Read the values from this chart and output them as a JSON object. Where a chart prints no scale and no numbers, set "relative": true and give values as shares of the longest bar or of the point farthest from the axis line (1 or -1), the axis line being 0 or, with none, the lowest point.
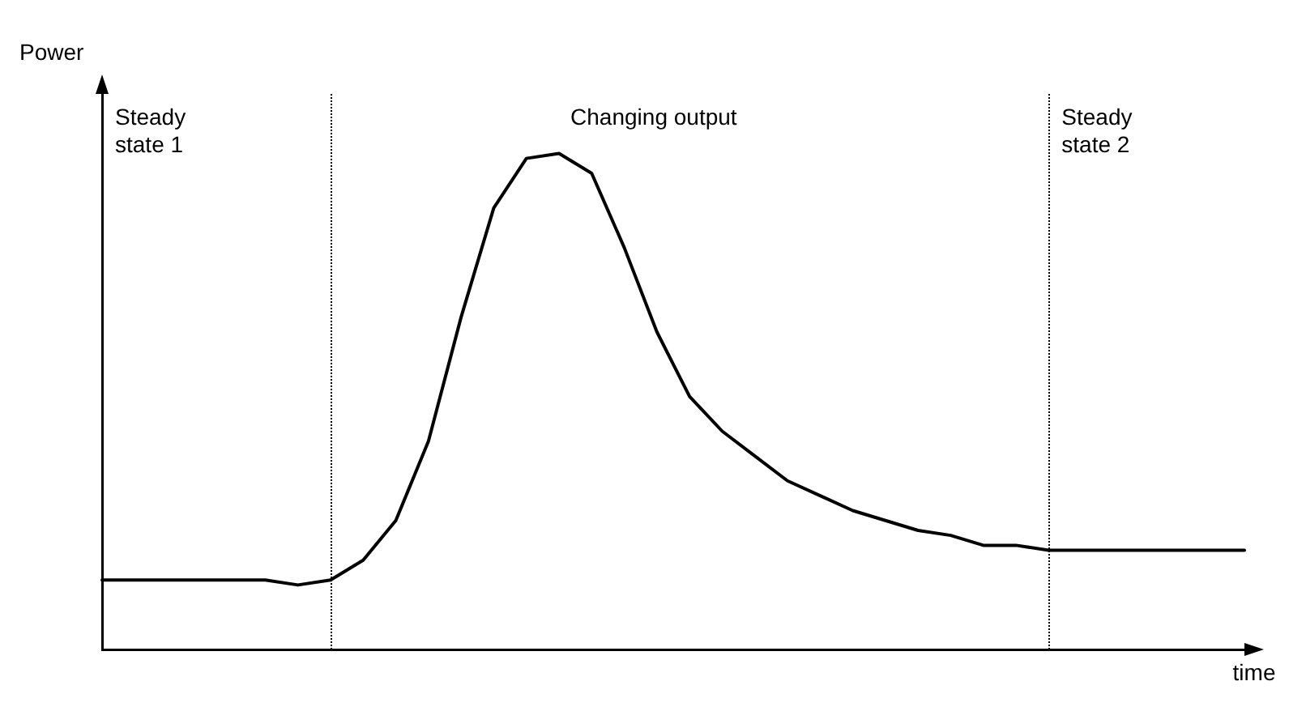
{
  "chart_data": {
    "type": "line",
    "relative": true,
    "ylabel": "Power",
    "xlabel": "time",
    "categories": [
      null,
      null,
      null,
      null,
      null,
      null,
      null,
      null,
      null,
      null,
      null,
      null,
      null,
      null,
      null,
      null,
      null,
      null,
      null,
      null,
      null,
      null,
      null,
      null,
      null,
      null,
      null,
      null,
      null,
      null,
      null,
      null,
      null,
      null,
      null,
      null
    ],
    "series": [
      {
        "color": "#000000",
        "values": [
          0.14,
          0.14,
          0.14,
          0.14,
          0.14,
          0.14,
          0.13,
          0.14,
          0.18,
          0.26,
          0.42,
          0.67,
          0.89,
          0.99,
          1,
          0.96,
          0.81,
          0.64,
          0.51,
          0.44,
          0.39,
          0.34,
          0.31,
          0.28,
          0.26,
          0.24,
          0.23,
          0.21,
          0.21,
          0.2,
          0.2,
          0.2,
          0.2,
          0.2,
          0.2,
          0.2
        ]
      }
    ],
    "annotations": [
      "Steady state 1",
      "Changing output",
      "Steady state 2"
    ],
    "marker": "none",
    "line_style": "solid",
    "grid": false,
    "legend": false
  }
}
